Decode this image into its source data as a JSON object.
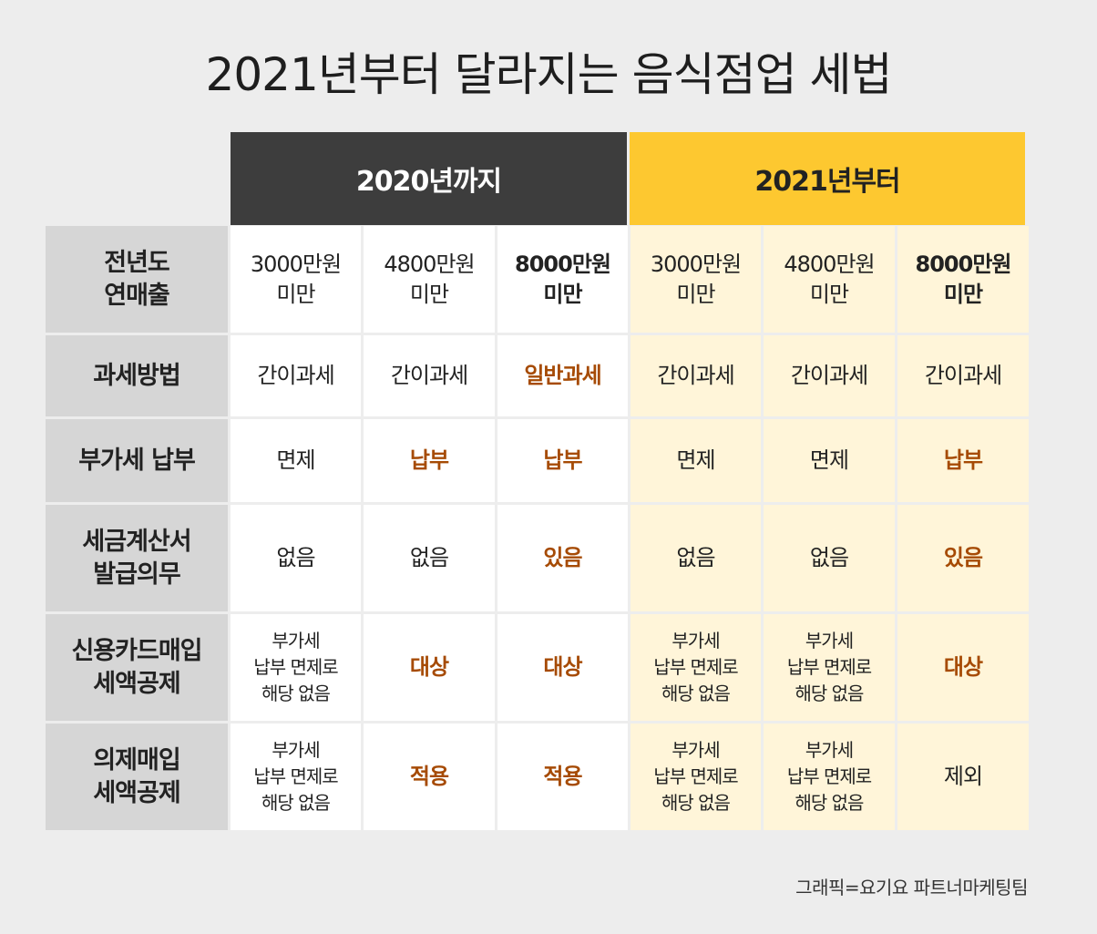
{
  "title": "2021년부터 달라지는 음식점업 세법",
  "headers": {
    "before": "2020년까지",
    "after": "2021년부터"
  },
  "colors": {
    "header_dark": "#3d3d3d",
    "header_yellow": "#fdc830",
    "highlight_text": "#a64b05",
    "yellow_cell": "#fff5d9",
    "label_cell": "#d6d6d6"
  },
  "rows": [
    {
      "label": "전년도\n연매출",
      "cells": [
        "3000만원\n미만",
        "4800만원\n미만",
        "8000만원\n미만",
        "3000만원\n미만",
        "4800만원\n미만",
        "8000만원\n미만"
      ]
    },
    {
      "label": "과세방법",
      "cells": [
        "간이과세",
        "간이과세",
        "일반과세",
        "간이과세",
        "간이과세",
        "간이과세"
      ]
    },
    {
      "label": "부가세 납부",
      "cells": [
        "면제",
        "납부",
        "납부",
        "면제",
        "면제",
        "납부"
      ]
    },
    {
      "label": "세금계산서\n발급의무",
      "cells": [
        "없음",
        "없음",
        "있음",
        "없음",
        "없음",
        "있음"
      ]
    },
    {
      "label": "신용카드매입\n세액공제",
      "cells": [
        "부가세\n납부 면제로\n해당 없음",
        "대상",
        "대상",
        "부가세\n납부 면제로\n해당 없음",
        "부가세\n납부 면제로\n해당 없음",
        "대상"
      ]
    },
    {
      "label": "의제매입\n세액공제",
      "cells": [
        "부가세\n납부 면제로\n해당 없음",
        "적용",
        "적용",
        "부가세\n납부 면제로\n해당 없음",
        "부가세\n납부 면제로\n해당 없음",
        "제외"
      ]
    }
  ],
  "credit": "그래픽=요기요 파트너마케팅팀"
}
